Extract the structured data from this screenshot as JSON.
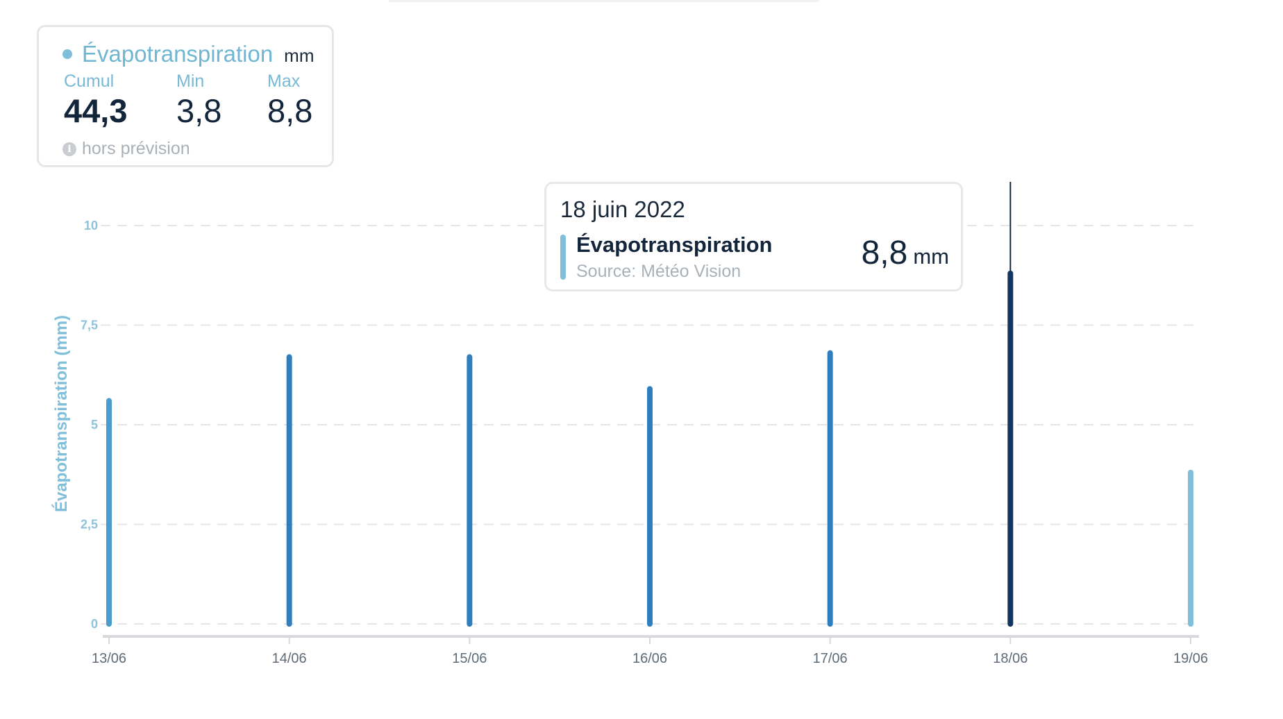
{
  "summary": {
    "title": "Évapotranspiration",
    "unit": "mm",
    "cumul_label": "Cumul",
    "cumul_value": "44,3",
    "min_label": "Min",
    "min_value": "3,8",
    "max_label": "Max",
    "max_value": "8,8",
    "note": "hors prévision",
    "dot_color": "#7fbfda"
  },
  "tooltip": {
    "date": "18 juin 2022",
    "series": "Évapotranspiration",
    "source": "Source: Météo Vision",
    "value": "8,8",
    "unit": "mm"
  },
  "chart_data": {
    "type": "bar",
    "ylabel": "Évapotranspiration (mm)",
    "ylim": [
      0,
      10
    ],
    "yticks": [
      0,
      2.5,
      5,
      7.5,
      10
    ],
    "ytick_labels": [
      "0",
      "2,5",
      "5",
      "7,5",
      "10"
    ],
    "categories": [
      "13/06",
      "14/06",
      "15/06",
      "16/06",
      "17/06",
      "18/06",
      "19/06"
    ],
    "values": [
      5.6,
      6.7,
      6.7,
      5.9,
      6.8,
      8.8,
      3.8
    ],
    "bar_colors": [
      "#4a9ccb",
      "#2f7fbf",
      "#2f7fbf",
      "#2f7fbf",
      "#2f7fbf",
      "#13365c",
      "#7fbfda"
    ],
    "highlight_category": "18/06",
    "grid": true,
    "axis_color": "#7fbfda"
  }
}
